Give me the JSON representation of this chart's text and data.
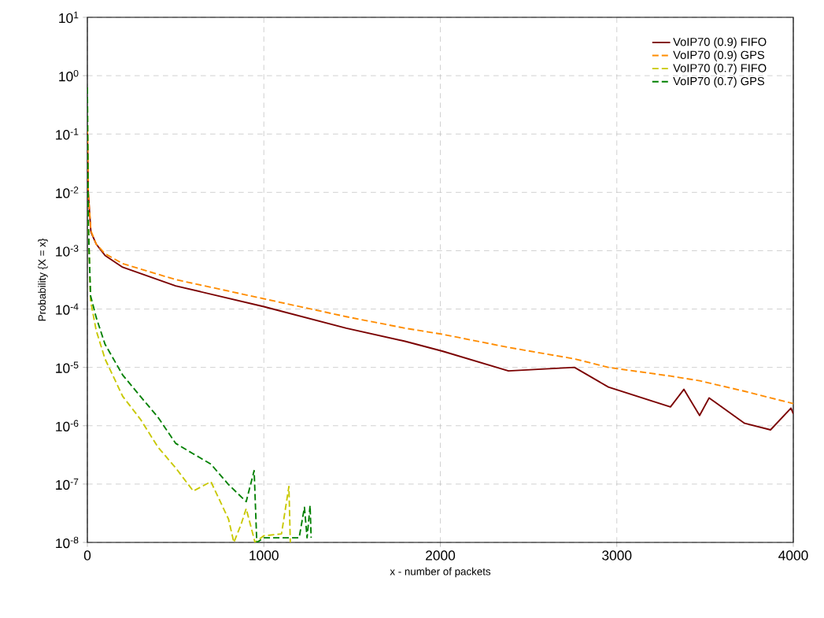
{
  "chart_data": {
    "type": "line",
    "xlabel": "x - number of packets",
    "ylabel": "Probability {X = x}",
    "log": "y",
    "grid": true,
    "legend": "top right",
    "xlim": [
      0,
      4000
    ],
    "xticks": [
      0,
      1000,
      2000,
      3000,
      4000
    ],
    "ylim": [
      1e-08,
      10
    ],
    "yticks": [
      {
        "value": 1e-08,
        "label": "10$^{-8}$"
      },
      {
        "value": 1e-07,
        "label": "10$^{-7}$"
      },
      {
        "value": 1e-06,
        "label": "10$^{-6}$"
      },
      {
        "value": 1e-05,
        "label": "10$^{-5}$"
      },
      {
        "value": 0.0001,
        "label": "10$^{-4}$"
      },
      {
        "value": 0.001,
        "label": "10$^{-3}$"
      },
      {
        "value": 0.01,
        "label": "10$^{-2}$"
      },
      {
        "value": 0.1,
        "label": "10$^{-1}$"
      },
      {
        "value": 1,
        "label": "10$^{0}$"
      },
      {
        "value": 10,
        "label": "10$^{1}$"
      }
    ],
    "series": [
      {
        "name": "VoIP70 (0.9) FIFO",
        "color": "#7b0000",
        "line_style": "solid",
        "x": [
          0,
          5,
          20,
          50,
          100,
          200,
          500,
          1000,
          1467,
          1800,
          2011,
          2386,
          2760,
          2952,
          3304,
          3380,
          3469,
          3523,
          3724,
          3871,
          3987,
          4000
        ],
        "values": [
          0.14,
          0.01,
          0.0021,
          0.0013,
          0.00083,
          0.00052,
          0.00025,
          0.00011,
          4.7e-05,
          2.8e-05,
          1.9e-05,
          8.7e-06,
          1e-05,
          4.6e-06,
          2.1e-06,
          4.2e-06,
          1.5e-06,
          3e-06,
          1.1e-06,
          8.5e-07,
          2e-06,
          1.6e-06
        ]
      },
      {
        "name": "VoIP70 (0.9) GPS",
        "color": "#ff8c00",
        "line_style": "dashed",
        "x": [
          0,
          5,
          20,
          50,
          100,
          200,
          500,
          1000,
          1467,
          1800,
          2011,
          2386,
          2760,
          2952,
          3304,
          3469,
          3724,
          3871,
          4000
        ],
        "values": [
          0.13,
          0.01,
          0.0022,
          0.0013,
          0.00089,
          0.0006,
          0.00032,
          0.00015,
          7.4e-05,
          4.7e-05,
          3.7e-05,
          2.2e-05,
          1.4e-05,
          1e-05,
          7.1e-06,
          5.9e-06,
          3.9e-06,
          3e-06,
          2.4e-06
        ]
      },
      {
        "name": "VoIP70 (0.7) FIFO",
        "color": "#c8c800",
        "line_style": "dashed",
        "x": [
          0,
          5,
          18,
          50,
          100,
          200,
          300,
          400,
          500,
          600,
          700,
          800,
          830,
          870,
          900,
          950,
          1000,
          1100,
          1142,
          1150
        ],
        "values": [
          0.63,
          0.0032,
          0.00014,
          4.3e-05,
          1.4e-05,
          3.2e-06,
          1.3e-06,
          4.3e-07,
          1.9e-07,
          7.6e-08,
          1.1e-07,
          2.5e-08,
          1e-08,
          2e-08,
          3.8e-08,
          1e-08,
          1.3e-08,
          1.4e-08,
          9.1e-08,
          1e-08
        ]
      },
      {
        "name": "VoIP70 (0.7) GPS",
        "color": "#008000",
        "line_style": "dashed",
        "x": [
          0,
          5,
          18,
          50,
          100,
          200,
          300,
          400,
          500,
          600,
          700,
          800,
          900,
          945,
          960,
          1000,
          1200,
          1230,
          1245,
          1262,
          1268
        ],
        "values": [
          0.63,
          0.0032,
          0.00017,
          7.2e-05,
          2.5e-05,
          7.4e-06,
          3.2e-06,
          1.4e-06,
          5e-07,
          3.3e-07,
          2.2e-07,
          9.8e-08,
          5e-08,
          1.7e-07,
          1e-08,
          1.2e-08,
          1.2e-08,
          4e-08,
          1.2e-08,
          4.3e-08,
          1.2e-08
        ]
      }
    ]
  }
}
